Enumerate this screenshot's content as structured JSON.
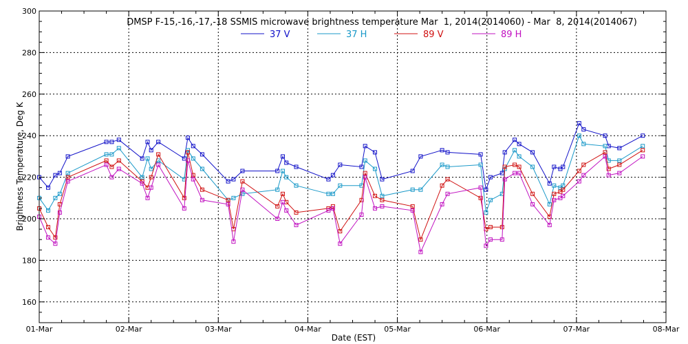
{
  "chart_data": {
    "type": "line",
    "title": "DMSP F-15,-16,-17,-18 SSMIS microwave brightness temperature Mar  1, 2014(2014060) - Mar  8, 2014(2014067)",
    "xlabel": "Date (EST)",
    "ylabel": "Brightness Temperature, Deg K",
    "xlim": [
      0,
      7
    ],
    "ylim": [
      150,
      300
    ],
    "xticks": [
      0,
      1,
      2,
      3,
      4,
      5,
      6,
      7
    ],
    "xtick_labels": [
      "01-Mar",
      "02-Mar",
      "03-Mar",
      "04-Mar",
      "05-Mar",
      "06-Mar",
      "07-Mar",
      "08-Mar"
    ],
    "yticks": [
      160,
      180,
      200,
      220,
      240,
      260,
      280,
      300
    ],
    "grid": true,
    "legend_position": "top-center",
    "series": [
      {
        "name": "37 V",
        "color": "#1010c8",
        "x": [
          0.0,
          0.1,
          0.18,
          0.23,
          0.32,
          0.75,
          0.81,
          0.89,
          1.15,
          1.21,
          1.25,
          1.33,
          1.62,
          1.66,
          1.72,
          1.82,
          2.11,
          2.17,
          2.27,
          2.66,
          2.72,
          2.76,
          2.87,
          3.23,
          3.28,
          3.36,
          3.6,
          3.64,
          3.75,
          3.83,
          4.17,
          4.26,
          4.5,
          4.56,
          4.93,
          4.99,
          5.04,
          5.17,
          5.2,
          5.31,
          5.36,
          5.51,
          5.7,
          5.75,
          5.82,
          5.85,
          6.03,
          6.08,
          6.32,
          6.36,
          6.48,
          6.74
        ],
        "values": [
          220,
          215,
          221,
          222,
          230,
          237,
          237,
          238,
          229,
          237,
          233,
          237,
          229,
          239,
          235,
          231,
          218,
          219,
          223,
          223,
          230,
          227,
          225,
          219,
          221,
          226,
          225,
          235,
          232,
          219,
          223,
          230,
          233,
          232,
          231,
          214,
          220,
          222,
          232,
          238,
          236,
          232,
          217,
          225,
          224,
          225,
          246,
          243,
          240,
          235,
          234,
          240
        ]
      },
      {
        "name": "37 H",
        "color": "#1898c8",
        "x": [
          0.0,
          0.1,
          0.18,
          0.23,
          0.32,
          0.75,
          0.81,
          0.89,
          1.15,
          1.21,
          1.25,
          1.33,
          1.62,
          1.66,
          1.72,
          1.82,
          2.11,
          2.17,
          2.27,
          2.66,
          2.72,
          2.76,
          2.87,
          3.23,
          3.28,
          3.36,
          3.6,
          3.64,
          3.75,
          3.83,
          4.17,
          4.26,
          4.5,
          4.56,
          4.93,
          4.99,
          5.04,
          5.17,
          5.2,
          5.31,
          5.36,
          5.51,
          5.7,
          5.75,
          5.82,
          5.85,
          6.03,
          6.08,
          6.32,
          6.36,
          6.48,
          6.74
        ],
        "values": [
          210,
          204,
          210,
          212,
          222,
          231,
          231,
          234,
          220,
          229,
          224,
          228,
          219,
          233,
          229,
          224,
          209,
          210,
          212,
          214,
          223,
          220,
          216,
          212,
          212,
          216,
          216,
          228,
          224,
          211,
          214,
          214,
          226,
          225,
          226,
          203,
          209,
          212,
          224,
          233,
          230,
          225,
          207,
          216,
          215,
          216,
          240,
          236,
          235,
          228,
          228,
          235
        ]
      },
      {
        "name": "89 V",
        "color": "#d01010",
        "x": [
          0.0,
          0.1,
          0.18,
          0.23,
          0.32,
          0.75,
          0.81,
          0.89,
          1.15,
          1.21,
          1.25,
          1.33,
          1.62,
          1.66,
          1.72,
          1.82,
          2.11,
          2.17,
          2.27,
          2.66,
          2.72,
          2.76,
          2.87,
          3.23,
          3.28,
          3.36,
          3.6,
          3.64,
          3.75,
          3.83,
          4.17,
          4.26,
          4.5,
          4.56,
          4.93,
          4.99,
          5.04,
          5.17,
          5.2,
          5.31,
          5.36,
          5.51,
          5.7,
          5.75,
          5.82,
          5.85,
          6.03,
          6.08,
          6.32,
          6.36,
          6.48,
          6.74
        ],
        "values": [
          205,
          196,
          191,
          207,
          220,
          228,
          225,
          228,
          218,
          215,
          220,
          231,
          210,
          232,
          221,
          214,
          209,
          195,
          218,
          206,
          212,
          208,
          203,
          205,
          206,
          194,
          209,
          222,
          211,
          209,
          206,
          190,
          216,
          219,
          210,
          195,
          196,
          196,
          225,
          226,
          225,
          212,
          201,
          212,
          213,
          214,
          223,
          226,
          232,
          224,
          226,
          233
        ]
      },
      {
        "name": "89 H",
        "color": "#c010c0",
        "x": [
          0.0,
          0.1,
          0.18,
          0.23,
          0.32,
          0.75,
          0.81,
          0.89,
          1.15,
          1.21,
          1.25,
          1.33,
          1.62,
          1.66,
          1.72,
          1.82,
          2.11,
          2.17,
          2.27,
          2.66,
          2.72,
          2.76,
          2.87,
          3.23,
          3.28,
          3.36,
          3.6,
          3.64,
          3.75,
          3.83,
          4.17,
          4.26,
          4.5,
          4.56,
          4.93,
          4.99,
          5.04,
          5.17,
          5.2,
          5.31,
          5.36,
          5.51,
          5.7,
          5.75,
          5.82,
          5.85,
          6.03,
          6.08,
          6.32,
          6.36,
          6.48,
          6.74
        ],
        "values": [
          201,
          191,
          188,
          203,
          218,
          226,
          220,
          224,
          217,
          210,
          215,
          226,
          205,
          228,
          219,
          209,
          207,
          189,
          214,
          200,
          208,
          204,
          197,
          204,
          205,
          188,
          202,
          220,
          205,
          206,
          204,
          184,
          207,
          212,
          215,
          187,
          190,
          190,
          219,
          222,
          222,
          207,
          197,
          209,
          210,
          211,
          218,
          221,
          230,
          221,
          222,
          230
        ]
      }
    ]
  }
}
